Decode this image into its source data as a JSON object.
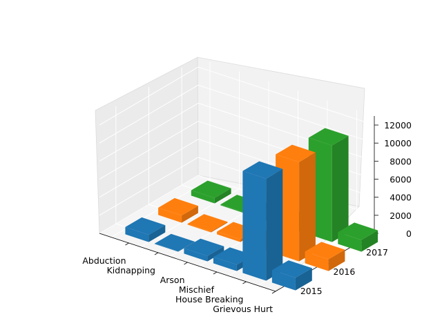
{
  "chart_data": {
    "type": "bar3d",
    "categories": [
      "Abduction",
      "Kidnapping",
      "Arson",
      "Mischief",
      "House Breaking",
      "Grievous Hurt"
    ],
    "series": [
      {
        "name": "2015",
        "values": [
          800,
          50,
          600,
          700,
          11300,
          1400
        ],
        "color": "#1f77b4"
      },
      {
        "name": "2016",
        "values": [
          800,
          100,
          300,
          500,
          11000,
          1300
        ],
        "color": "#ff7f0e"
      },
      {
        "name": "2017",
        "values": [
          600,
          100,
          300,
          500,
          10700,
          1300
        ],
        "color": "#2ca02c"
      }
    ],
    "z_ticks": [
      "0",
      "2000",
      "4000",
      "6000",
      "8000",
      "10000",
      "12000"
    ],
    "zlim": [
      0,
      13000
    ],
    "grid": true,
    "title": "",
    "xlabel": "",
    "ylabel": "",
    "zlabel": ""
  }
}
